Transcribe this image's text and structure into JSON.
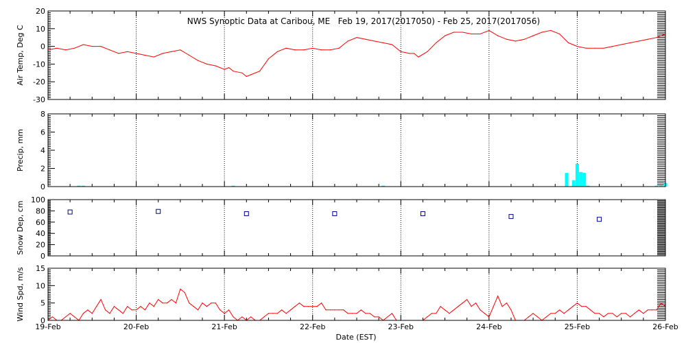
{
  "title": "NWS Synoptic Data at Caribou, ME   Feb 19, 2017(2017050) - Feb 25, 2017(2017056)",
  "xlabel": "Date (EST)",
  "x_ticks": [
    "19-Feb",
    "20-Feb",
    "21-Feb",
    "22-Feb",
    "23-Feb",
    "24-Feb",
    "25-Feb",
    "26-Feb"
  ],
  "colors": {
    "temp": "#ff0000",
    "precip": "#00ffff",
    "snow": "#00008b",
    "wind": "#ff0000",
    "axes": "#000000"
  },
  "chart_data": [
    {
      "type": "line",
      "ylabel": "Air Temp, Deg C",
      "ylim": [
        -30,
        20
      ],
      "y_ticks": [
        -30,
        -20,
        -10,
        0,
        10,
        20
      ],
      "x_unit": "days since 19-Feb 00:00 EST",
      "x": [
        0,
        0.1,
        0.2,
        0.3,
        0.4,
        0.5,
        0.6,
        0.7,
        0.8,
        0.9,
        1.0,
        1.1,
        1.2,
        1.3,
        1.4,
        1.5,
        1.6,
        1.7,
        1.8,
        1.9,
        2.0,
        2.05,
        2.1,
        2.2,
        2.25,
        2.3,
        2.4,
        2.5,
        2.6,
        2.7,
        2.8,
        2.9,
        3.0,
        3.1,
        3.2,
        3.3,
        3.4,
        3.5,
        3.6,
        3.7,
        3.8,
        3.9,
        4.0,
        4.1,
        4.15,
        4.2,
        4.3,
        4.4,
        4.5,
        4.6,
        4.7,
        4.8,
        4.9,
        5.0,
        5.1,
        5.2,
        5.3,
        5.4,
        5.5,
        5.6,
        5.7,
        5.8,
        5.9,
        6.0,
        6.1,
        6.2,
        6.3,
        6.4,
        6.5,
        6.6,
        6.7,
        6.8,
        6.9,
        7.0
      ],
      "values": [
        -2,
        -1,
        -2,
        -1,
        1,
        0,
        0,
        -2,
        -4,
        -3,
        -4,
        -5,
        -6,
        -4,
        -3,
        -2,
        -5,
        -8,
        -10,
        -11,
        -13,
        -12,
        -14,
        -15,
        -17,
        -16,
        -14,
        -7,
        -3,
        -1,
        -2,
        -2,
        -1,
        -2,
        -2,
        -1,
        3,
        5,
        4,
        3,
        2,
        1,
        -3,
        -4,
        -4,
        -6,
        -3,
        2,
        6,
        8,
        8,
        7,
        7,
        9,
        6,
        4,
        3,
        4,
        6,
        8,
        9,
        7,
        2,
        0,
        -1,
        -1,
        -1,
        0,
        1,
        2,
        3,
        4,
        5,
        7
      ]
    },
    {
      "type": "bar",
      "ylabel": "Precip, mm",
      "ylim": [
        0,
        8
      ],
      "y_ticks": [
        0,
        2,
        4,
        6,
        8
      ],
      "x_unit": "days since 19-Feb 00:00 EST",
      "x": [
        0.35,
        0.4,
        2.1,
        3.8,
        5.88,
        5.96,
        6.0,
        6.04,
        6.08,
        6.12,
        6.9,
        6.95,
        7.0
      ],
      "values": [
        0.1,
        0.1,
        0.1,
        0.1,
        1.5,
        0.7,
        2.5,
        1.6,
        1.5,
        0.1,
        0.1,
        0.1,
        0.4
      ]
    },
    {
      "type": "scatter",
      "ylabel": "Snow Dep, cm",
      "ylim": [
        0,
        100
      ],
      "y_ticks": [
        0,
        20,
        40,
        60,
        80,
        100
      ],
      "x_unit": "days since 19-Feb 00:00 EST",
      "x": [
        0.25,
        1.25,
        2.25,
        3.25,
        4.25,
        5.25,
        6.25
      ],
      "values": [
        78,
        79,
        75,
        75,
        75,
        70,
        65
      ]
    },
    {
      "type": "line",
      "ylabel": "Wind Spd, m/s",
      "ylim": [
        0,
        15
      ],
      "y_ticks": [
        0,
        5,
        10,
        15
      ],
      "x_unit": "days since 19-Feb 00:00 EST",
      "x": [
        0,
        0.05,
        0.1,
        0.15,
        0.2,
        0.25,
        0.3,
        0.35,
        0.4,
        0.45,
        0.5,
        0.55,
        0.6,
        0.65,
        0.7,
        0.75,
        0.8,
        0.85,
        0.9,
        0.95,
        1.0,
        1.05,
        1.1,
        1.15,
        1.2,
        1.25,
        1.3,
        1.35,
        1.4,
        1.45,
        1.5,
        1.55,
        1.6,
        1.65,
        1.7,
        1.75,
        1.8,
        1.85,
        1.9,
        1.95,
        2.0,
        2.05,
        2.1,
        2.15,
        2.2,
        2.25,
        2.3,
        2.35,
        2.4,
        2.45,
        2.5,
        2.55,
        2.6,
        2.65,
        2.7,
        2.75,
        2.8,
        2.85,
        2.9,
        2.95,
        3.0,
        3.05,
        3.1,
        3.15,
        3.2,
        3.25,
        3.3,
        3.35,
        3.4,
        3.45,
        3.5,
        3.55,
        3.6,
        3.65,
        3.7,
        3.75,
        3.8,
        3.85,
        3.9,
        3.95,
        4.0,
        4.05,
        4.1,
        4.15,
        4.2,
        4.25,
        4.3,
        4.35,
        4.4,
        4.45,
        4.5,
        4.55,
        4.6,
        4.65,
        4.7,
        4.75,
        4.8,
        4.85,
        4.9,
        4.95,
        5.0,
        5.05,
        5.1,
        5.15,
        5.2,
        5.25,
        5.3,
        5.35,
        5.4,
        5.45,
        5.5,
        5.55,
        5.6,
        5.65,
        5.7,
        5.75,
        5.8,
        5.85,
        5.9,
        5.95,
        6.0,
        6.05,
        6.1,
        6.15,
        6.2,
        6.25,
        6.3,
        6.35,
        6.4,
        6.45,
        6.5,
        6.55,
        6.6,
        6.65,
        6.7,
        6.75,
        6.8,
        6.85,
        6.9,
        6.95,
        7.0
      ],
      "values": [
        0,
        1,
        0,
        0,
        1,
        2,
        1,
        0,
        2,
        3,
        2,
        4,
        6,
        3,
        2,
        4,
        3,
        2,
        4,
        3,
        3,
        4,
        3,
        5,
        4,
        6,
        5,
        5,
        6,
        5,
        9,
        8,
        5,
        4,
        3,
        5,
        4,
        5,
        5,
        3,
        2,
        3,
        1,
        0,
        1,
        0,
        1,
        0,
        0,
        1,
        2,
        2,
        2,
        3,
        2,
        3,
        4,
        5,
        4,
        4,
        4,
        4,
        5,
        3,
        3,
        3,
        3,
        3,
        2,
        2,
        2,
        3,
        2,
        2,
        1,
        1,
        0,
        1,
        2,
        0,
        0,
        0,
        0,
        0,
        0,
        0,
        1,
        2,
        2,
        4,
        3,
        2,
        3,
        4,
        5,
        6,
        4,
        5,
        3,
        2,
        1,
        4,
        7,
        4,
        5,
        3,
        0,
        0,
        0,
        1,
        2,
        1,
        0,
        1,
        2,
        2,
        3,
        2,
        3,
        4,
        5,
        4,
        4,
        3,
        2,
        2,
        1,
        2,
        2,
        1,
        2,
        2,
        1,
        2,
        3,
        2,
        3,
        3,
        3,
        5,
        4
      ]
    }
  ]
}
